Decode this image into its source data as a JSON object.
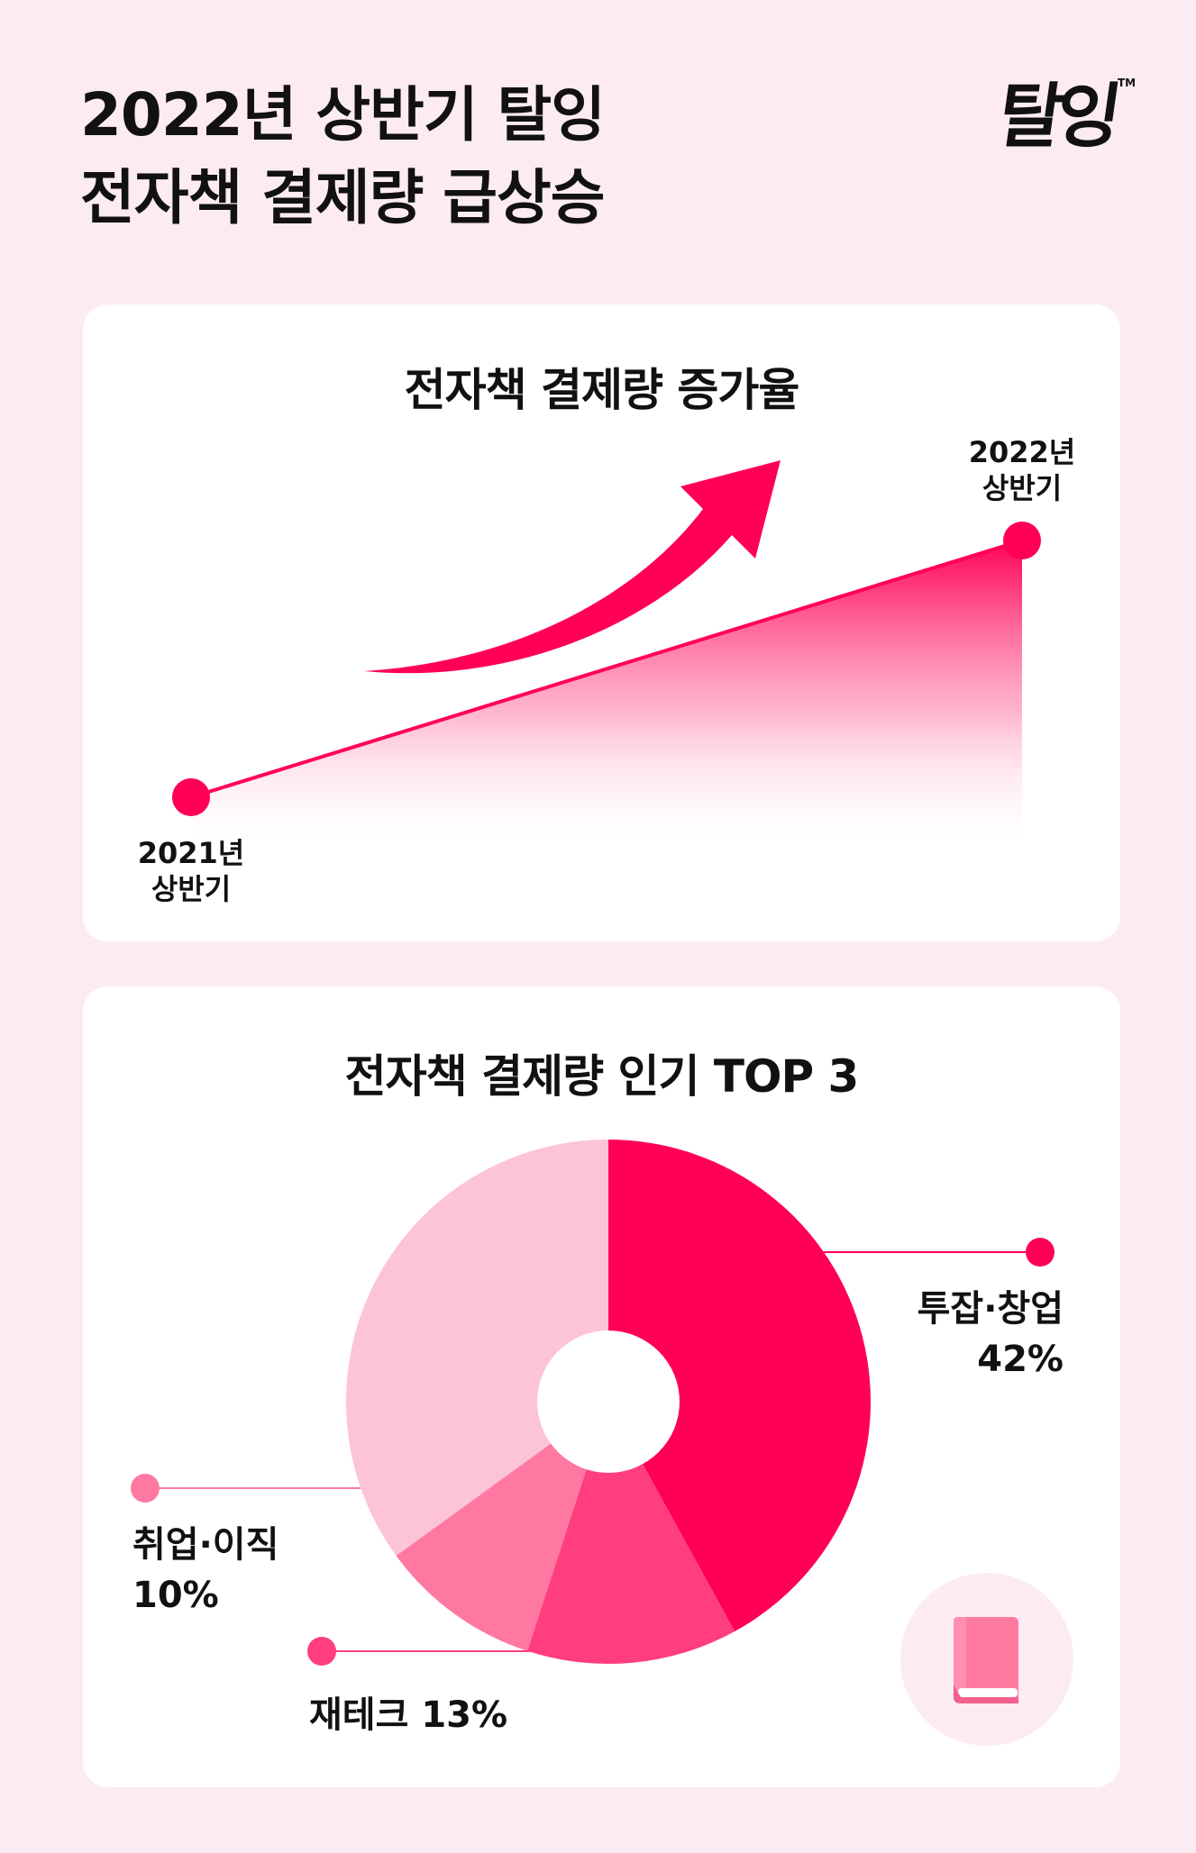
{
  "header": {
    "title_line1": "2022년 상반기 탈잉",
    "title_line2": "전자책 결제량 급상승",
    "logo_text": "탈잉™"
  },
  "colors": {
    "background": "#fdebf3",
    "accent": "#ff0055",
    "slice2": "#ff3d7f",
    "slice3": "#ff78a2",
    "slice4": "#fdc3d8"
  },
  "chart_data": [
    {
      "type": "area",
      "title": "전자책 결제량 증가율",
      "points": [
        {
          "label_line1": "2021년",
          "label_line2": "상반기"
        },
        {
          "label_line1": "2022년",
          "label_line2": "상반기"
        }
      ],
      "trend": "increasing",
      "icon": "up-arrow-icon"
    },
    {
      "type": "pie",
      "title": "전자책 결제량 인기 TOP 3",
      "donut": true,
      "slices": [
        {
          "name": "투잡·창업",
          "value": 42,
          "label": "42%"
        },
        {
          "name": "재테크",
          "value": 13,
          "label": "13%"
        },
        {
          "name": "취업·이직",
          "value": 10,
          "label": "10%"
        },
        {
          "name": "",
          "value": 35
        }
      ],
      "icon": "book-icon"
    }
  ]
}
